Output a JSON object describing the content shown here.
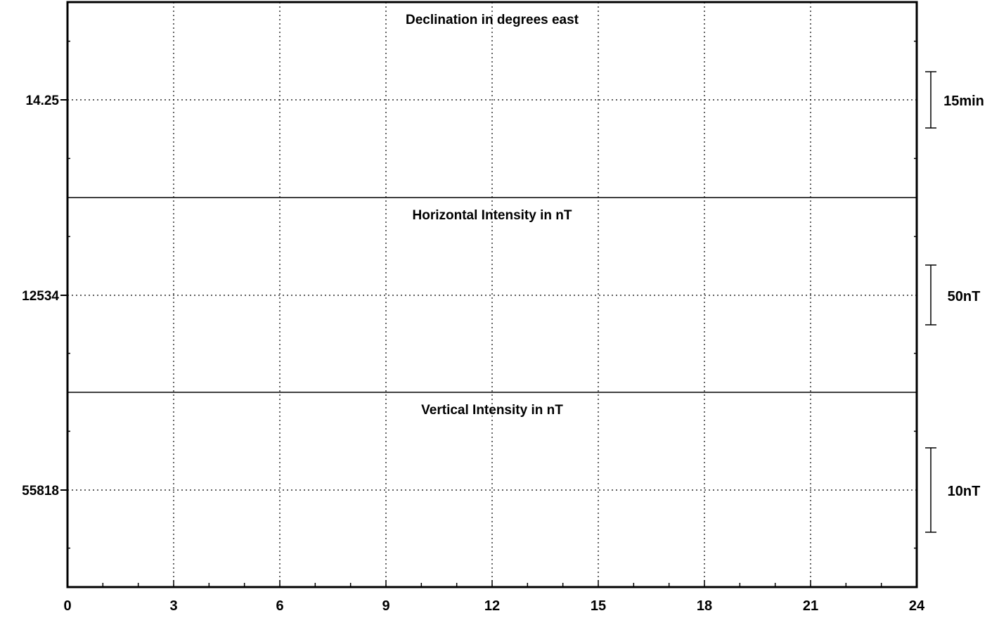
{
  "chart_data": {
    "type": "line",
    "xlim": [
      0,
      24
    ],
    "x_major_ticks": [
      0,
      3,
      6,
      9,
      12,
      15,
      18,
      21,
      24
    ],
    "x_tick_labels": [
      "0",
      "3",
      "6",
      "9",
      "12",
      "15",
      "18",
      "21",
      "24"
    ],
    "x_minor_step": 1,
    "grid": true,
    "panels": [
      {
        "id": "declination",
        "title": "Declination in degrees east",
        "baseline_label": "14.25",
        "baseline_value": 14.25,
        "scale_label": "15min",
        "series": []
      },
      {
        "id": "horizontal",
        "title": "Horizontal Intensity in nT",
        "baseline_label": "12534",
        "baseline_value": 12534,
        "scale_label": "50nT",
        "series": []
      },
      {
        "id": "vertical",
        "title": "Vertical Intensity in nT",
        "baseline_label": "55818",
        "baseline_value": 55818,
        "scale_label": "10nT",
        "series": []
      }
    ]
  }
}
